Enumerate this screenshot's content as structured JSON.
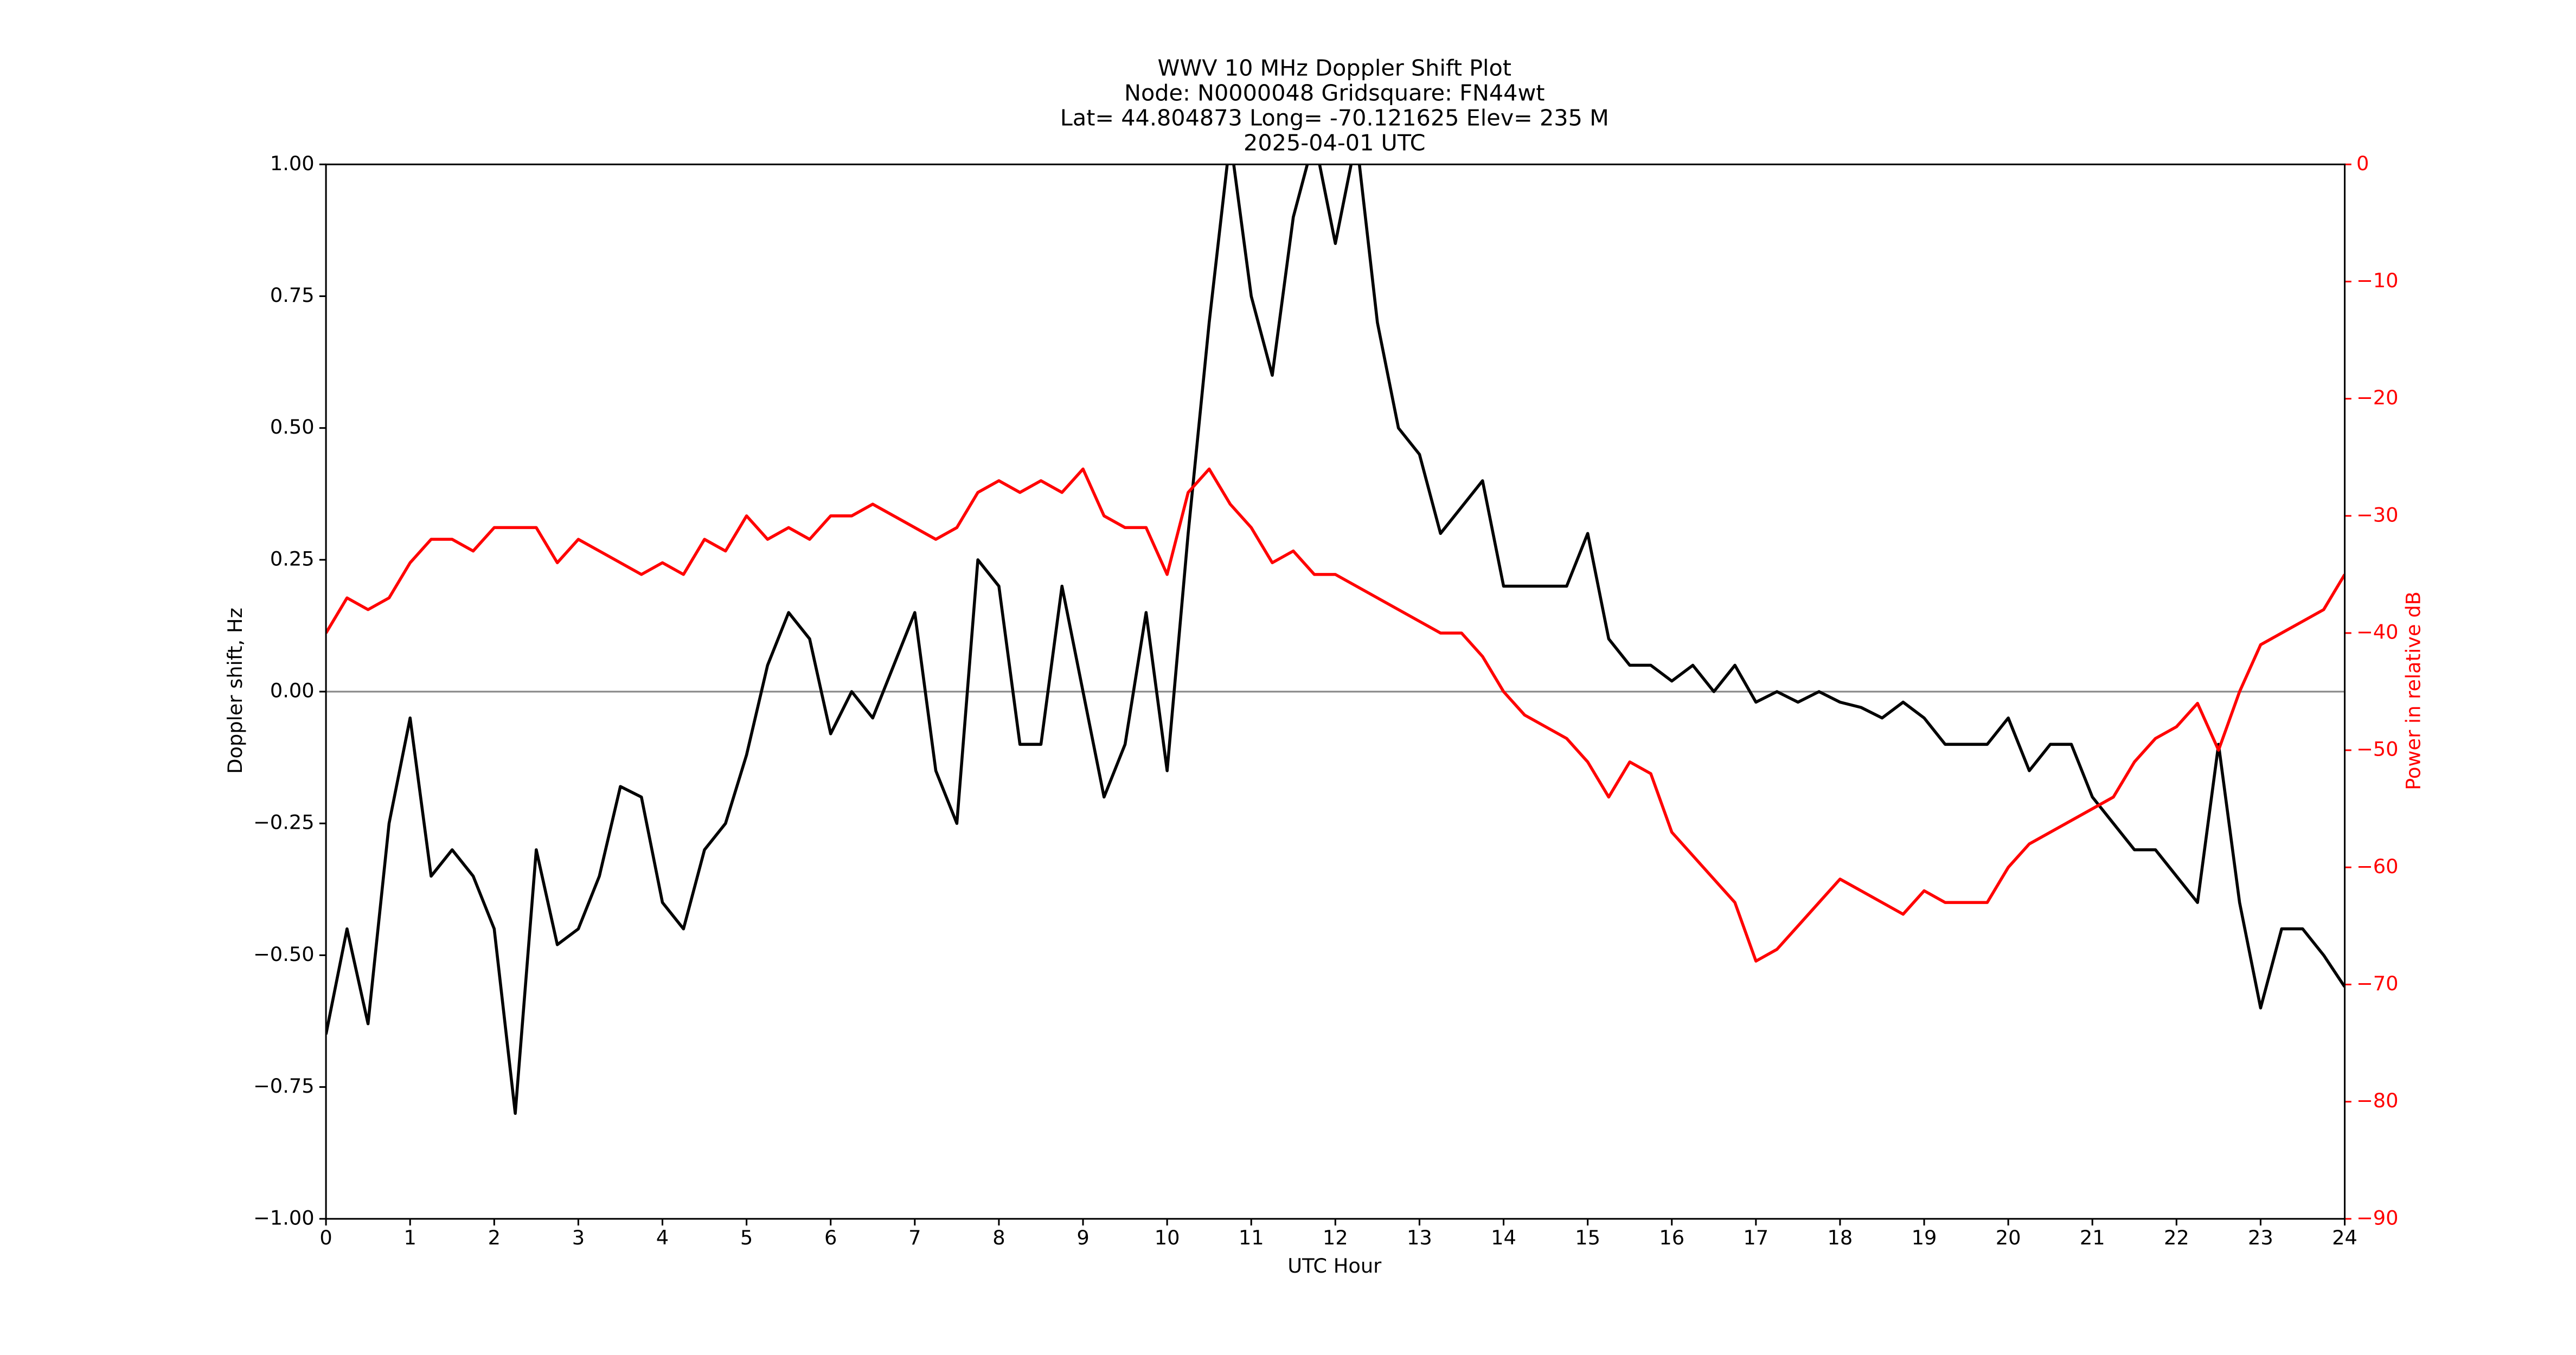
{
  "chart_data": {
    "type": "line",
    "title": [
      "WWV 10 MHz Doppler Shift Plot",
      "Node:  N0000048     Gridsquare:  FN44wt",
      "Lat= 44.804873    Long= -70.121625    Elev= 235 M",
      "2025-04-01  UTC"
    ],
    "xlabel": "UTC Hour",
    "ylabel": "Doppler shift, Hz",
    "y2label": "Power in relative dB",
    "x": [
      0,
      0.25,
      0.5,
      0.75,
      1,
      1.25,
      1.5,
      1.75,
      2,
      2.25,
      2.5,
      2.75,
      3,
      3.25,
      3.5,
      3.75,
      4,
      4.25,
      4.5,
      4.75,
      5,
      5.25,
      5.5,
      5.75,
      6,
      6.25,
      6.5,
      6.75,
      7,
      7.25,
      7.5,
      7.75,
      8,
      8.25,
      8.5,
      8.75,
      9,
      9.25,
      9.5,
      9.75,
      10,
      10.25,
      10.5,
      10.75,
      11,
      11.25,
      11.5,
      11.75,
      12,
      12.25,
      12.5,
      12.75,
      13,
      13.25,
      13.5,
      13.75,
      14,
      14.25,
      14.5,
      14.75,
      15,
      15.25,
      15.5,
      15.75,
      16,
      16.25,
      16.5,
      16.75,
      17,
      17.25,
      17.5,
      17.75,
      18,
      18.25,
      18.5,
      18.75,
      19,
      19.25,
      19.5,
      19.75,
      20,
      20.25,
      20.5,
      20.75,
      21,
      21.25,
      21.5,
      21.75,
      22,
      22.25,
      22.5,
      22.75,
      23,
      23.25,
      23.5,
      23.75,
      24
    ],
    "series": [
      {
        "name": "Doppler shift",
        "color": "#000000",
        "axis": "y",
        "values": [
          -0.65,
          -0.45,
          -0.63,
          -0.25,
          -0.05,
          -0.35,
          -0.3,
          -0.35,
          -0.45,
          -0.8,
          -0.3,
          -0.48,
          -0.45,
          -0.35,
          -0.18,
          -0.2,
          -0.4,
          -0.45,
          -0.3,
          -0.25,
          -0.12,
          0.05,
          0.15,
          0.1,
          -0.08,
          0.0,
          -0.05,
          0.05,
          0.15,
          -0.15,
          -0.25,
          0.25,
          0.2,
          -0.1,
          -0.1,
          0.2,
          0.0,
          -0.2,
          -0.1,
          0.15,
          -0.15,
          0.3,
          0.7,
          1.05,
          0.75,
          0.6,
          0.9,
          1.05,
          0.85,
          1.05,
          0.7,
          0.5,
          0.45,
          0.3,
          0.35,
          0.4,
          0.2,
          0.2,
          0.2,
          0.2,
          0.3,
          0.1,
          0.05,
          0.05,
          0.02,
          0.05,
          0.0,
          0.05,
          -0.02,
          0.0,
          -0.02,
          0.0,
          -0.02,
          -0.03,
          -0.05,
          -0.02,
          -0.05,
          -0.1,
          -0.1,
          -0.1,
          -0.05,
          -0.15,
          -0.1,
          -0.1,
          -0.2,
          -0.25,
          -0.3,
          -0.3,
          -0.35,
          -0.4,
          -0.1,
          -0.4,
          -0.6,
          -0.45,
          -0.45,
          -0.5,
          -0.56
        ]
      },
      {
        "name": "Power",
        "color": "#ff0000",
        "axis": "y2",
        "values": [
          -40,
          -37,
          -38,
          -37,
          -34,
          -32,
          -32,
          -33,
          -31,
          -31,
          -31,
          -34,
          -32,
          -33,
          -34,
          -35,
          -34,
          -35,
          -32,
          -33,
          -30,
          -32,
          -31,
          -32,
          -30,
          -30,
          -29,
          -30,
          -31,
          -32,
          -31,
          -28,
          -27,
          -28,
          -27,
          -28,
          -26,
          -30,
          -31,
          -31,
          -35,
          -28,
          -26,
          -29,
          -31,
          -34,
          -33,
          -35,
          -35,
          -36,
          -37,
          -38,
          -39,
          -40,
          -40,
          -42,
          -45,
          -47,
          -48,
          -49,
          -51,
          -54,
          -51,
          -52,
          -57,
          -59,
          -61,
          -63,
          -68,
          -67,
          -65,
          -63,
          -61,
          -62,
          -63,
          -64,
          -62,
          -63,
          -63,
          -63,
          -60,
          -58,
          -57,
          -56,
          -55,
          -54,
          -51,
          -49,
          -48,
          -46,
          -50,
          -45,
          -41,
          -40,
          -39,
          -38,
          -35
        ]
      }
    ],
    "hline": 0,
    "xlim": [
      0,
      24
    ],
    "xticks": [
      0,
      1,
      2,
      3,
      4,
      5,
      6,
      7,
      8,
      9,
      10,
      11,
      12,
      13,
      14,
      15,
      16,
      17,
      18,
      19,
      20,
      21,
      22,
      23,
      24
    ],
    "ylim": [
      -1,
      1
    ],
    "yticks": [
      {
        "value": -1,
        "label": "−1.00"
      },
      {
        "value": -0.75,
        "label": "−0.75"
      },
      {
        "value": -0.5,
        "label": "−0.50"
      },
      {
        "value": -0.25,
        "label": "−0.25"
      },
      {
        "value": 0,
        "label": "0.00"
      },
      {
        "value": 0.25,
        "label": "0.25"
      },
      {
        "value": 0.5,
        "label": "0.50"
      },
      {
        "value": 0.75,
        "label": "0.75"
      },
      {
        "value": 1,
        "label": "1.00"
      }
    ],
    "y2lim": [
      -90,
      0
    ],
    "y2ticks": [
      {
        "value": -90,
        "label": "−90"
      },
      {
        "value": -80,
        "label": "−80"
      },
      {
        "value": -70,
        "label": "−70"
      },
      {
        "value": -60,
        "label": "−60"
      },
      {
        "value": -50,
        "label": "−50"
      },
      {
        "value": -40,
        "label": "−40"
      },
      {
        "value": -30,
        "label": "−30"
      },
      {
        "value": -20,
        "label": "−20"
      },
      {
        "value": -10,
        "label": "−10"
      },
      0
    ],
    "y2color": "#ff0000"
  }
}
